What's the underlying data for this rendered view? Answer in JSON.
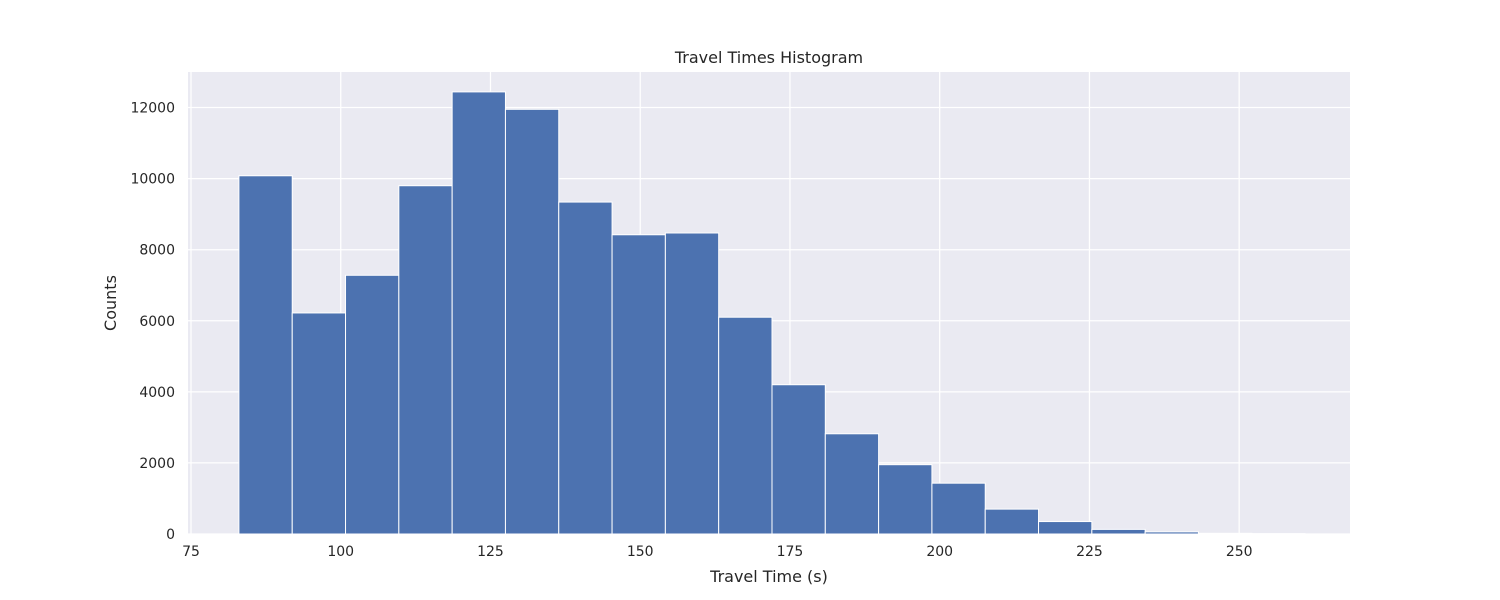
{
  "chart_data": {
    "type": "bar",
    "title": "Travel Times Histogram",
    "xlabel": "Travel Time (s)",
    "ylabel": "Counts",
    "xlim": [
      74.5,
      268.5
    ],
    "ylim": [
      0,
      13000
    ],
    "x_ticks": [
      75,
      100,
      125,
      150,
      175,
      200,
      225,
      250
    ],
    "y_ticks": [
      0,
      2000,
      4000,
      6000,
      8000,
      10000,
      12000
    ],
    "grid": true,
    "colors": {
      "bar": "#4c72b0",
      "axes_background": "#eaeaf2",
      "grid": "#ffffff"
    },
    "bins": [
      {
        "x0": 83.0,
        "x1": 91.9,
        "count": 10080
      },
      {
        "x0": 91.9,
        "x1": 100.8,
        "count": 6220
      },
      {
        "x0": 100.8,
        "x1": 109.7,
        "count": 7280
      },
      {
        "x0": 109.7,
        "x1": 118.6,
        "count": 9800
      },
      {
        "x0": 118.6,
        "x1": 127.5,
        "count": 12440
      },
      {
        "x0": 127.5,
        "x1": 136.4,
        "count": 11950
      },
      {
        "x0": 136.4,
        "x1": 145.3,
        "count": 9340
      },
      {
        "x0": 145.3,
        "x1": 154.2,
        "count": 8420
      },
      {
        "x0": 154.2,
        "x1": 163.1,
        "count": 8470
      },
      {
        "x0": 163.1,
        "x1": 172.0,
        "count": 6100
      },
      {
        "x0": 172.0,
        "x1": 180.9,
        "count": 4200
      },
      {
        "x0": 180.9,
        "x1": 189.8,
        "count": 2820
      },
      {
        "x0": 189.8,
        "x1": 198.7,
        "count": 1950
      },
      {
        "x0": 198.7,
        "x1": 207.6,
        "count": 1430
      },
      {
        "x0": 207.6,
        "x1": 216.5,
        "count": 700
      },
      {
        "x0": 216.5,
        "x1": 225.4,
        "count": 350
      },
      {
        "x0": 225.4,
        "x1": 234.3,
        "count": 130
      },
      {
        "x0": 234.3,
        "x1": 243.2,
        "count": 60
      },
      {
        "x0": 243.2,
        "x1": 252.1,
        "count": 20
      },
      {
        "x0": 252.1,
        "x1": 261.0,
        "count": 10
      }
    ]
  }
}
